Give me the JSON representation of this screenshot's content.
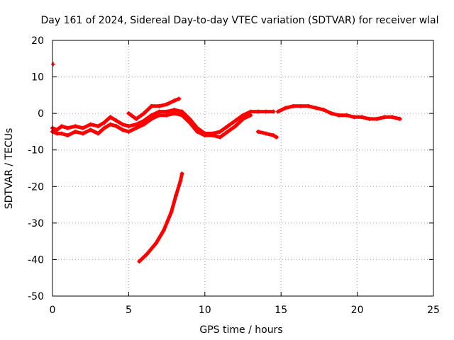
{
  "chart_data": {
    "type": "scatter",
    "title": "Day 161 of 2024, Sidereal Day-to-day VTEC variation (SDTVAR) for receiver wlal",
    "xlabel": "GPS time / hours",
    "ylabel": "SDTVAR / TECUs",
    "xlim": [
      0,
      25
    ],
    "ylim": [
      -50,
      20
    ],
    "xticks": [
      0,
      5,
      10,
      15,
      20,
      25
    ],
    "yticks": [
      -50,
      -40,
      -30,
      -20,
      -10,
      0,
      10,
      20
    ],
    "grid": true,
    "color": "#ff0000",
    "series": [
      {
        "name": "upper band",
        "x": [
          0.0,
          0.3,
          0.6,
          1.0,
          1.5,
          2.0,
          2.5,
          3.0,
          3.4,
          3.8,
          4.2,
          4.6,
          5.0,
          5.5,
          6.0,
          6.5,
          7.0,
          7.5,
          8.0,
          8.5,
          9.0,
          9.5,
          10.0,
          10.5,
          11.0,
          11.5,
          12.0,
          12.5,
          13.0,
          13.5,
          14.0,
          14.5
        ],
        "values": [
          -4.0,
          -4.5,
          -3.5,
          -4.0,
          -3.5,
          -4.0,
          -3.0,
          -3.5,
          -2.5,
          -1.0,
          -2.0,
          -3.0,
          -3.5,
          -3.0,
          -2.0,
          -0.5,
          0.5,
          0.5,
          1.0,
          0.5,
          -1.5,
          -4.0,
          -5.5,
          -5.5,
          -5.0,
          -3.5,
          -2.0,
          -0.5,
          0.5,
          0.5,
          0.5,
          0.5
        ]
      },
      {
        "name": "lower band",
        "x": [
          0.0,
          0.3,
          0.6,
          1.0,
          1.5,
          2.0,
          2.5,
          3.0,
          3.4,
          3.8,
          4.2,
          4.6,
          5.0,
          5.5,
          6.0,
          6.5,
          7.0,
          7.5,
          8.0,
          8.5,
          9.0,
          9.5,
          10.0,
          10.5,
          11.0,
          11.5,
          12.0,
          12.5,
          13.0
        ],
        "values": [
          -5.0,
          -5.5,
          -5.5,
          -6.0,
          -5.0,
          -5.5,
          -4.5,
          -5.5,
          -4.0,
          -3.0,
          -3.5,
          -4.5,
          -5.0,
          -4.0,
          -3.0,
          -1.5,
          -0.5,
          -0.5,
          0.0,
          -0.5,
          -2.5,
          -5.0,
          -6.0,
          -6.0,
          -6.5,
          -5.0,
          -3.5,
          -1.5,
          -0.5
        ]
      },
      {
        "name": "rising arc 5-8.3h",
        "x": [
          5.0,
          5.5,
          6.0,
          6.5,
          7.0,
          7.5,
          8.0,
          8.3
        ],
        "values": [
          0.0,
          -1.5,
          0.0,
          2.0,
          2.0,
          2.5,
          3.5,
          4.0
        ]
      },
      {
        "name": "descending segment",
        "x": [
          5.7,
          6.2,
          6.8,
          7.3,
          7.8,
          8.1,
          8.4,
          8.5
        ],
        "values": [
          -40.5,
          -38.5,
          -35.5,
          -32.0,
          -27.0,
          -22.5,
          -18.5,
          -16.5
        ]
      },
      {
        "name": "short segment 13.5-14.7h",
        "x": [
          13.5,
          14.0,
          14.5,
          14.7
        ],
        "values": [
          -5.0,
          -5.5,
          -6.0,
          -6.5
        ]
      },
      {
        "name": "late band",
        "x": [
          14.8,
          15.3,
          15.8,
          16.3,
          16.8,
          17.3,
          17.8,
          18.3,
          18.8,
          19.3,
          19.8,
          20.3,
          20.8,
          21.3,
          21.8,
          22.3,
          22.8
        ],
        "values": [
          0.5,
          1.5,
          2.0,
          2.0,
          2.0,
          1.5,
          1.0,
          0.0,
          -0.5,
          -0.5,
          -1.0,
          -1.0,
          -1.5,
          -1.5,
          -1.0,
          -1.0,
          -1.5
        ]
      },
      {
        "name": "outlier",
        "x": [
          0.05
        ],
        "values": [
          13.5
        ]
      }
    ]
  }
}
